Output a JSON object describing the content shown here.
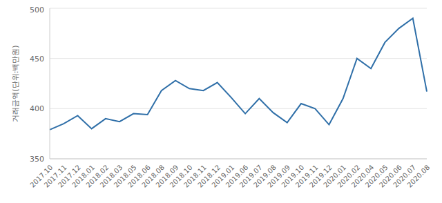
{
  "chart_data": {
    "type": "line",
    "y_label": "거래금액(단위:백만원)",
    "categories": [
      "2017.10",
      "2017.11",
      "2017.12",
      "2018.01",
      "2018.02",
      "2018.03",
      "2018.05",
      "2018.06",
      "2018.08",
      "2018.09",
      "2018.10",
      "2018.11",
      "2018.12",
      "2019.01",
      "2019.06",
      "2019.07",
      "2019.08",
      "2019.09",
      "2019.10",
      "2019.11",
      "2019.12",
      "2020.01",
      "2020.02",
      "2020.04",
      "2020.05",
      "2020.06",
      "2020.07",
      "2020.08"
    ],
    "values": [
      379,
      385,
      393,
      380,
      390,
      387,
      395,
      394,
      418,
      428,
      420,
      418,
      426,
      411,
      395,
      410,
      396,
      386,
      405,
      400,
      384,
      410,
      450,
      440,
      466,
      480,
      490,
      417
    ],
    "color": "#2f6fa8",
    "ylim": [
      350,
      500
    ],
    "yticks": [
      350,
      400,
      450,
      500
    ],
    "grid": true
  }
}
